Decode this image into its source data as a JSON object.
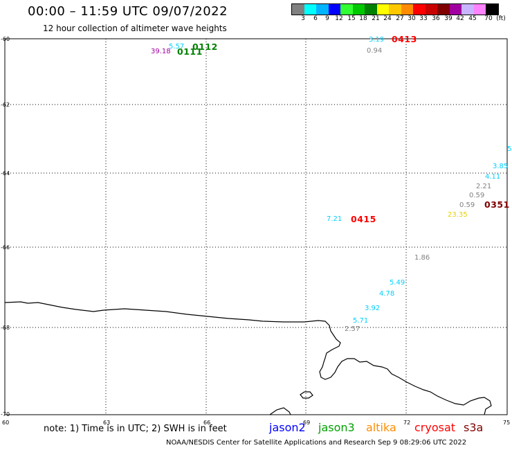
{
  "header": {
    "title": "00:00 – 11:59 UTC 09/07/2022",
    "subtitle": "12 hour collection of altimeter wave heights"
  },
  "legend": {
    "colors": [
      "#808080",
      "#00ffff",
      "#00b4ff",
      "#0000ff",
      "#32ff32",
      "#00c800",
      "#008000",
      "#ffff00",
      "#ffc800",
      "#ff8c00",
      "#ff0000",
      "#c80000",
      "#800000",
      "#a000a0",
      "#c8b4ff",
      "#ff82ff",
      "#000000"
    ],
    "labels": [
      "3",
      "6",
      "9",
      "12",
      "15",
      "18",
      "21",
      "24",
      "27",
      "30",
      "33",
      "36",
      "39",
      "42",
      "45",
      "70",
      "(ft)"
    ]
  },
  "axes": {
    "lat_labels": [
      "-60",
      "-62",
      "-64",
      "-66",
      "-68",
      "-70"
    ],
    "lon_labels": [
      "60",
      "63",
      "66",
      "69",
      "72",
      "75"
    ]
  },
  "observations": [
    {
      "text": "5.57",
      "color": "#00d0ff"
    },
    {
      "text": "39.18",
      "color": "#a000a0"
    },
    {
      "text": "3.19",
      "color": "#00d0ff"
    },
    {
      "text": "0.94",
      "color": "#808080"
    },
    {
      "text": "5",
      "color": "#00d0ff"
    },
    {
      "text": "3.85",
      "color": "#00d0ff"
    },
    {
      "text": "4.11",
      "color": "#00d0ff"
    },
    {
      "text": "2.21",
      "color": "#808080"
    },
    {
      "text": "0.59",
      "color": "#808080"
    },
    {
      "text": "0.59",
      "color": "#808080"
    },
    {
      "text": "23.35",
      "color": "#e8d000"
    },
    {
      "text": "7.21",
      "color": "#00d0ff"
    },
    {
      "text": "1.86",
      "color": "#808080"
    },
    {
      "text": "5.49",
      "color": "#00d0ff"
    },
    {
      "text": "4.78",
      "color": "#00d0ff"
    },
    {
      "text": "3.92",
      "color": "#00d0ff"
    },
    {
      "text": "5.71",
      "color": "#00d0ff"
    },
    {
      "text": "2.57",
      "color": "#808080"
    }
  ],
  "passes": [
    {
      "text": "0112",
      "color": "#008000"
    },
    {
      "text": "0111",
      "color": "#008000"
    },
    {
      "text": "0413",
      "color": "#ff0000"
    },
    {
      "text": "0351",
      "color": "#800000"
    },
    {
      "text": "0415",
      "color": "#ff0000"
    }
  ],
  "footer": {
    "note": "note: 1) Time is in UTC; 2) SWH is in feet",
    "satellites": [
      {
        "name": "jason2",
        "color": "#0000ff"
      },
      {
        "name": "jason3",
        "color": "#00a000"
      },
      {
        "name": "altika",
        "color": "#ff8c00"
      },
      {
        "name": "cryosat",
        "color": "#ff0000"
      },
      {
        "name": "s3a",
        "color": "#800000"
      }
    ],
    "credit": "NOAA/NESDIS Center for Satellite Applications and Research   Sep  9 08:29:06 UTC 2022"
  }
}
